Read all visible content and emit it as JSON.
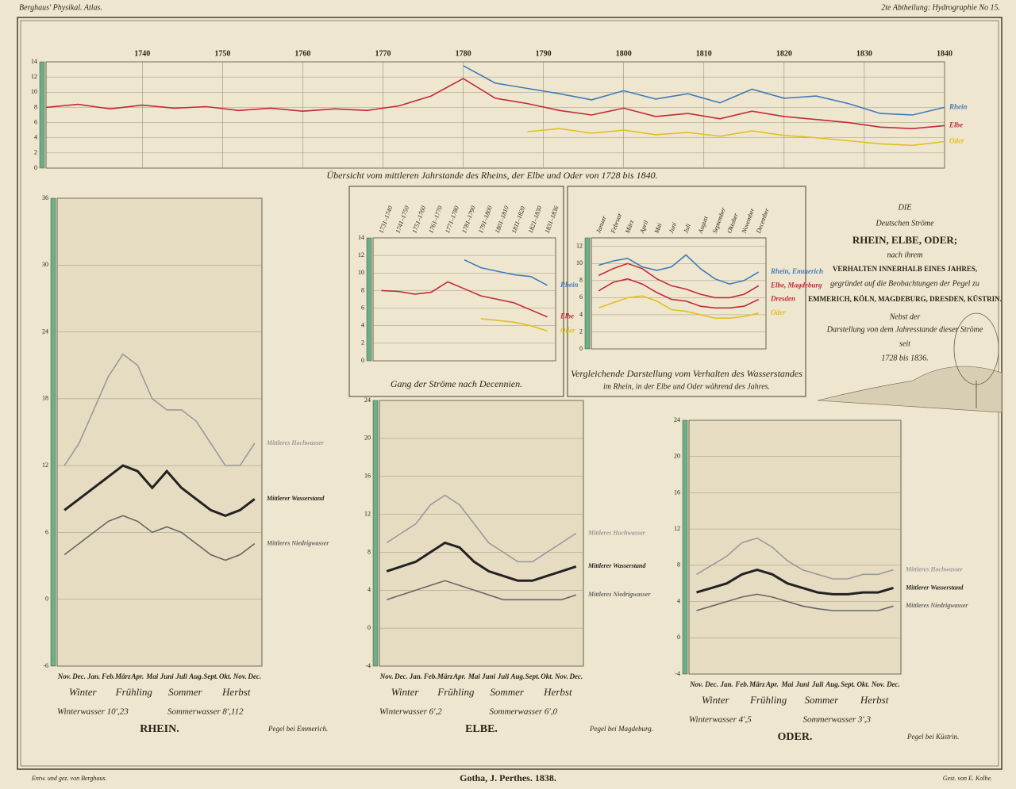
{
  "header": {
    "left": "Berghaus' Physikal. Atlas.",
    "right": "2te Abtheilung: Hydrographie No 15."
  },
  "footer": {
    "left": "Entw. und gez. von Berghaus.",
    "center": "Gotha, J. Perthes. 1838.",
    "right": "Gest. von E. Kolbe."
  },
  "title_block": {
    "lines": [
      "DIE",
      "Deutschen Ströme",
      "RHEIN, ELBE, ODER;",
      "nach ihrem",
      "VERHALTEN INNERHALB EINES JAHRES,",
      "gegründet auf die Beobachtungen der Pegel zu",
      "EMMERICH, KÖLN, MAGDEBURG, DRESDEN, KÜSTRIN.",
      "Nebst der",
      "Darstellung von dem Jahresstande dieser Ströme",
      "seit",
      "1728 bis 1836."
    ]
  },
  "chart_data": [
    {
      "type": "line",
      "title": "Übersicht vom mittleren Jahrstande des Rheins, der Elbe und Oder von 1728 bis 1840.",
      "x": [
        1728,
        1732,
        1736,
        1740,
        1744,
        1748,
        1752,
        1756,
        1760,
        1764,
        1768,
        1772,
        1776,
        1780,
        1784,
        1788,
        1792,
        1796,
        1800,
        1804,
        1808,
        1812,
        1816,
        1820,
        1824,
        1828,
        1832,
        1836,
        1840
      ],
      "series": [
        {
          "name": "Rhein",
          "color": "#3f7bb8",
          "values": [
            null,
            null,
            null,
            null,
            null,
            null,
            null,
            null,
            null,
            null,
            null,
            null,
            null,
            13.5,
            11.2,
            10.5,
            9.8,
            9.0,
            10.2,
            9.1,
            9.8,
            8.6,
            10.4,
            9.2,
            9.5,
            8.5,
            7.2,
            7.0,
            8.0
          ]
        },
        {
          "name": "Elbe",
          "color": "#c42a3a",
          "values": [
            8,
            8.4,
            7.8,
            8.3,
            7.9,
            8.1,
            7.6,
            7.9,
            7.5,
            7.8,
            7.6,
            8.2,
            9.5,
            11.8,
            9.2,
            8.5,
            7.6,
            7.0,
            7.9,
            6.8,
            7.2,
            6.5,
            7.5,
            6.8,
            6.4,
            6.0,
            5.4,
            5.2,
            5.6
          ]
        },
        {
          "name": "Oder",
          "color": "#e0c020",
          "values": [
            null,
            null,
            null,
            null,
            null,
            null,
            null,
            null,
            null,
            null,
            null,
            null,
            null,
            null,
            null,
            4.8,
            5.2,
            4.6,
            5.0,
            4.4,
            4.7,
            4.2,
            4.9,
            4.3,
            4.0,
            3.6,
            3.2,
            3.0,
            3.5
          ]
        }
      ],
      "xlim": [
        1728,
        1840
      ],
      "xticks": [
        1740,
        1750,
        1760,
        1770,
        1780,
        1790,
        1800,
        1810,
        1820,
        1830,
        1840
      ],
      "ylim": [
        0,
        14
      ],
      "yticks": [
        0,
        2,
        4,
        6,
        8,
        10,
        12,
        14
      ],
      "grid": true
    },
    {
      "type": "line",
      "title": "Gang der Ströme nach Decennien.",
      "categories": [
        "1731–1740",
        "1741–1750",
        "1751–1760",
        "1761–1770",
        "1771–1780",
        "1781–1790",
        "1791–1800",
        "1801–1810",
        "1811–1820",
        "1821–1830",
        "1831–1836"
      ],
      "series": [
        {
          "name": "Rhein",
          "color": "#3f7bb8",
          "values": [
            null,
            null,
            null,
            null,
            null,
            11.5,
            10.6,
            10.2,
            9.8,
            9.6,
            8.6
          ]
        },
        {
          "name": "Elbe",
          "color": "#c42a3a",
          "values": [
            8.0,
            7.9,
            7.6,
            7.8,
            9.0,
            8.2,
            7.4,
            7.0,
            6.6,
            5.8,
            5.0
          ]
        },
        {
          "name": "Oder",
          "color": "#e0c020",
          "values": [
            null,
            null,
            null,
            null,
            null,
            null,
            4.8,
            4.6,
            4.4,
            4.0,
            3.4
          ]
        }
      ],
      "ylim": [
        0,
        14
      ],
      "yticks": [
        0,
        2,
        4,
        6,
        8,
        10,
        12,
        14
      ],
      "grid": true
    },
    {
      "type": "line",
      "title": "Vergleichende Darstellung vom Verhalten des Wasserstandes",
      "subtitle": "im Rhein, in der Elbe und Oder während des Jahres.",
      "categories": [
        "Januar",
        "Februar",
        "März",
        "April",
        "Mai",
        "Juni",
        "Juli",
        "August",
        "September",
        "Oktober",
        "November",
        "December"
      ],
      "series": [
        {
          "name": "Rhein, Emmerich",
          "color": "#3f7bb8",
          "values": [
            9.8,
            10.3,
            10.6,
            9.6,
            9.2,
            9.6,
            11.0,
            9.4,
            8.2,
            7.6,
            8.0,
            9.0
          ]
        },
        {
          "name": "Elbe, Magdeburg",
          "color": "#c42a3a",
          "values": [
            8.6,
            9.4,
            10.0,
            9.4,
            8.2,
            7.4,
            7.0,
            6.4,
            6.0,
            6.0,
            6.4,
            7.4
          ]
        },
        {
          "name": "Dresden",
          "color": "#c42a3a",
          "values": [
            6.8,
            7.8,
            8.2,
            7.6,
            6.6,
            5.8,
            5.6,
            5.0,
            4.8,
            4.8,
            5.0,
            5.8
          ]
        },
        {
          "name": "Oder",
          "color": "#e0c020",
          "values": [
            4.8,
            5.4,
            6.0,
            6.2,
            5.6,
            4.6,
            4.4,
            4.0,
            3.6,
            3.6,
            3.8,
            4.2
          ]
        }
      ],
      "ylim": [
        0,
        13
      ],
      "yticks": [
        0,
        2,
        4,
        6,
        8,
        10,
        12
      ],
      "grid": true
    },
    {
      "type": "line",
      "title": "RHEIN.",
      "pegel": "Pegel bei Emmerich.",
      "seasons": [
        "Winter",
        "Frühling",
        "Sommer",
        "Herbst"
      ],
      "winter": "Winterwasser 10',23",
      "summer": "Sommerwasser 8',112",
      "categories": [
        "Nov.",
        "Dec.",
        "Jan.",
        "Feb.",
        "März",
        "Apr.",
        "Mai",
        "Juni",
        "Juli",
        "Aug.",
        "Sept.",
        "Okt.",
        "Nov.",
        "Dec."
      ],
      "series": [
        {
          "name": "Mittleres Hochwasser",
          "color": "#9a9a9a",
          "values": [
            12,
            14,
            17,
            20,
            22,
            21,
            18,
            17,
            17,
            16,
            14,
            12,
            12,
            14
          ]
        },
        {
          "name": "Mittlerer Wasserstand",
          "color": "#222222",
          "values": [
            8,
            9,
            10,
            11,
            12,
            11.5,
            10,
            11.5,
            10,
            9,
            8,
            7.5,
            8,
            9
          ]
        },
        {
          "name": "Mittleres Niedrigwasser",
          "color": "#666666",
          "values": [
            4,
            5,
            6,
            7,
            7.5,
            7,
            6,
            6.5,
            6,
            5,
            4,
            3.5,
            4,
            5
          ]
        }
      ],
      "ylim": [
        -6,
        36
      ],
      "yticks": [
        -6,
        0,
        6,
        12,
        18,
        24,
        30,
        36
      ],
      "grid": true
    },
    {
      "type": "line",
      "title": "ELBE.",
      "pegel": "Pegel bei Magdeburg.",
      "seasons": [
        "Winter",
        "Frühling",
        "Sommer",
        "Herbst"
      ],
      "winter": "Winterwasser 6',2",
      "summer": "Sommerwasser 6',0",
      "categories": [
        "Nov.",
        "Dec.",
        "Jan.",
        "Feb.",
        "März",
        "Apr.",
        "Mai",
        "Juni",
        "Juli",
        "Aug.",
        "Sept.",
        "Okt.",
        "Nov.",
        "Dec."
      ],
      "series": [
        {
          "name": "Mittleres Hochwasser",
          "color": "#9a9a9a",
          "values": [
            9,
            10,
            11,
            13,
            14,
            13,
            11,
            9,
            8,
            7,
            7,
            8,
            9,
            10
          ]
        },
        {
          "name": "Mittlerer Wasserstand",
          "color": "#222222",
          "values": [
            6,
            6.5,
            7,
            8,
            9,
            8.5,
            7,
            6,
            5.5,
            5,
            5,
            5.5,
            6,
            6.5
          ]
        },
        {
          "name": "Mittleres Niedrigwasser",
          "color": "#666666",
          "values": [
            3,
            3.5,
            4,
            4.5,
            5,
            4.5,
            4,
            3.5,
            3,
            3,
            3,
            3,
            3,
            3.5
          ]
        }
      ],
      "ylim": [
        -4,
        24
      ],
      "yticks": [
        -4,
        0,
        4,
        8,
        12,
        16,
        20,
        24
      ],
      "grid": true
    },
    {
      "type": "line",
      "title": "ODER.",
      "pegel": "Pegel bei Küstrin.",
      "seasons": [
        "Winter",
        "Frühling",
        "Sommer",
        "Herbst"
      ],
      "winter": "Winterwasser 4',5",
      "summer": "Sommerwasser 3',3",
      "categories": [
        "Nov.",
        "Dec.",
        "Jan.",
        "Feb.",
        "März",
        "Apr.",
        "Mai",
        "Juni",
        "Juli",
        "Aug.",
        "Sept.",
        "Okt.",
        "Nov.",
        "Dec."
      ],
      "series": [
        {
          "name": "Mittleres Hochwasser",
          "color": "#9a9a9a",
          "values": [
            7,
            8,
            9,
            10.5,
            11,
            10,
            8.5,
            7.5,
            7,
            6.5,
            6.5,
            7,
            7,
            7.5
          ]
        },
        {
          "name": "Mittlerer Wasserstand",
          "color": "#222222",
          "values": [
            5,
            5.5,
            6,
            7,
            7.5,
            7,
            6,
            5.5,
            5,
            4.8,
            4.8,
            5,
            5,
            5.5
          ]
        },
        {
          "name": "Mittleres Niedrigwasser",
          "color": "#666666",
          "values": [
            3,
            3.5,
            4,
            4.5,
            4.8,
            4.5,
            4,
            3.5,
            3.2,
            3,
            3,
            3,
            3,
            3.5
          ]
        }
      ],
      "ylim": [
        -4,
        24
      ],
      "yticks": [
        -4,
        0,
        4,
        8,
        12,
        16,
        20,
        24
      ],
      "grid": true
    }
  ]
}
